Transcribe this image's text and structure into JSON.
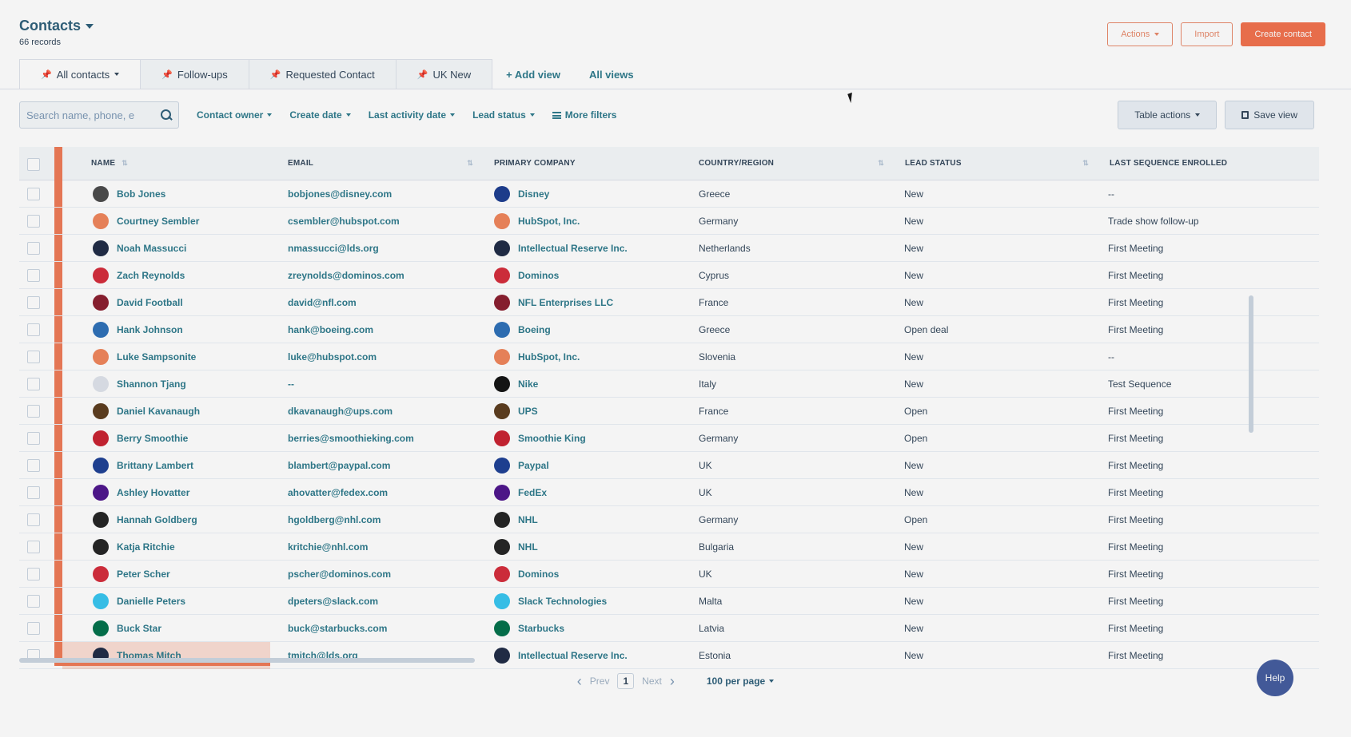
{
  "header": {
    "title": "Contacts",
    "records": "66 records",
    "actions_label": "Actions",
    "import_label": "Import",
    "create_label": "Create contact"
  },
  "tabs": [
    {
      "label": "All contacts",
      "active": true
    },
    {
      "label": "Follow-ups"
    },
    {
      "label": "Requested Contact"
    },
    {
      "label": "UK New"
    }
  ],
  "tab_links": {
    "add_view": "+ Add view",
    "all_views": "All views"
  },
  "filters": {
    "search_placeholder": "Search name, phone, e",
    "contact_owner": "Contact owner",
    "create_date": "Create date",
    "last_activity_date": "Last activity date",
    "lead_status": "Lead status",
    "more_filters": "More filters",
    "table_actions": "Table actions",
    "save_view": "Save view"
  },
  "table": {
    "columns": [
      "NAME",
      "EMAIL",
      "PRIMARY COMPANY",
      "COUNTRY/REGION",
      "LEAD STATUS",
      "LAST SEQUENCE ENROLLED"
    ],
    "rows": [
      {
        "name": "Bob Jones",
        "email": "bobjones@disney.com",
        "company": "Disney",
        "country": "Greece",
        "status": "New",
        "sequence": "--",
        "avatar_color": "#4a4a4a",
        "logo_color": "#1b3c8f",
        "logo_icon": "disney-logo-icon"
      },
      {
        "name": "Courtney Sembler",
        "email": "csembler@hubspot.com",
        "company": "HubSpot, Inc.",
        "country": "Germany",
        "status": "New",
        "sequence": "Trade show follow-up",
        "avatar_color": "#f0845a",
        "logo_color": "#f0845a",
        "logo_icon": "hubspot-logo-icon"
      },
      {
        "name": "Noah Massucci",
        "email": "nmassucci@lds.org",
        "company": "Intellectual Reserve Inc.",
        "country": "Netherlands",
        "status": "New",
        "sequence": "First Meeting",
        "avatar_color": "#1e2a44",
        "logo_color": "#1e2a44",
        "logo_icon": "lds-logo-icon"
      },
      {
        "name": "Zach Reynolds",
        "email": "zreynolds@dominos.com",
        "company": "Dominos",
        "country": "Cyprus",
        "status": "New",
        "sequence": "First Meeting",
        "avatar_color": "#d42b3a",
        "logo_color": "#d42b3a",
        "logo_icon": "dominos-logo-icon"
      },
      {
        "name": "David Football",
        "email": "david@nfl.com",
        "company": "NFL Enterprises LLC",
        "country": "France",
        "status": "New",
        "sequence": "First Meeting",
        "avatar_color": "#8a1c2d",
        "logo_color": "#8a1c2d",
        "logo_icon": "nfl-logo-icon"
      },
      {
        "name": "Hank Johnson",
        "email": "hank@boeing.com",
        "company": "Boeing",
        "country": "Greece",
        "status": "Open deal",
        "sequence": "First Meeting",
        "avatar_color": "#2c6fb7",
        "logo_color": "#2c6fb7",
        "logo_icon": "boeing-logo-icon"
      },
      {
        "name": "Luke Sampsonite",
        "email": "luke@hubspot.com",
        "company": "HubSpot, Inc.",
        "country": "Slovenia",
        "status": "New",
        "sequence": "--",
        "avatar_color": "#f0845a",
        "logo_color": "#f0845a",
        "logo_icon": "hubspot-logo-icon"
      },
      {
        "name": "Shannon Tjang",
        "email": "--",
        "company": "Nike",
        "country": "Italy",
        "status": "New",
        "sequence": "Test Sequence",
        "avatar_color": "#dfe3eb",
        "logo_color": "#111111",
        "logo_icon": "nike-logo-icon"
      },
      {
        "name": "Daniel Kavanaugh",
        "email": "dkavanaugh@ups.com",
        "company": "UPS",
        "country": "France",
        "status": "Open",
        "sequence": "First Meeting",
        "avatar_color": "#5b3b1c",
        "logo_color": "#5b3b1c",
        "logo_icon": "ups-logo-icon"
      },
      {
        "name": "Berry Smoothie",
        "email": "berries@smoothieking.com",
        "company": "Smoothie King",
        "country": "Germany",
        "status": "Open",
        "sequence": "First Meeting",
        "avatar_color": "#c8202f",
        "logo_color": "#c8202f",
        "logo_icon": "smoothie-king-logo-icon"
      },
      {
        "name": "Brittany Lambert",
        "email": "blambert@paypal.com",
        "company": "Paypal",
        "country": "UK",
        "status": "New",
        "sequence": "First Meeting",
        "avatar_color": "#1c3f94",
        "logo_color": "#1c3f94",
        "logo_icon": "paypal-logo-icon"
      },
      {
        "name": "Ashley Hovatter",
        "email": "ahovatter@fedex.com",
        "company": "FedEx",
        "country": "UK",
        "status": "New",
        "sequence": "First Meeting",
        "avatar_color": "#4d148c",
        "logo_color": "#4d148c",
        "logo_icon": "fedex-logo-icon"
      },
      {
        "name": "Hannah Goldberg",
        "email": "hgoldberg@nhl.com",
        "company": "NHL",
        "country": "Germany",
        "status": "Open",
        "sequence": "First Meeting",
        "avatar_color": "#222222",
        "logo_color": "#222222",
        "logo_icon": "nhl-logo-icon"
      },
      {
        "name": "Katja Ritchie",
        "email": "kritchie@nhl.com",
        "company": "NHL",
        "country": "Bulgaria",
        "status": "New",
        "sequence": "First Meeting",
        "avatar_color": "#222222",
        "logo_color": "#222222",
        "logo_icon": "nhl-logo-icon"
      },
      {
        "name": "Peter Scher",
        "email": "pscher@dominos.com",
        "company": "Dominos",
        "country": "UK",
        "status": "New",
        "sequence": "First Meeting",
        "avatar_color": "#d42b3a",
        "logo_color": "#d42b3a",
        "logo_icon": "dominos-logo-icon"
      },
      {
        "name": "Danielle Peters",
        "email": "dpeters@slack.com",
        "company": "Slack Technologies",
        "country": "Malta",
        "status": "New",
        "sequence": "First Meeting",
        "avatar_color": "#36c5f0",
        "logo_color": "#36c5f0",
        "logo_icon": "slack-logo-icon"
      },
      {
        "name": "Buck Star",
        "email": "buck@starbucks.com",
        "company": "Starbucks",
        "country": "Latvia",
        "status": "New",
        "sequence": "First Meeting",
        "avatar_color": "#00704a",
        "logo_color": "#00704a",
        "logo_icon": "starbucks-logo-icon"
      },
      {
        "name": "Thomas Mitch",
        "email": "tmitch@lds.org",
        "company": "Intellectual Reserve Inc.",
        "country": "Estonia",
        "status": "New",
        "sequence": "First Meeting",
        "avatar_color": "#1e2a44",
        "logo_color": "#1e2a44",
        "logo_icon": "lds-logo-icon"
      }
    ]
  },
  "pagination": {
    "prev": "Prev",
    "page": "1",
    "next": "Next",
    "per_page": "100 per page"
  },
  "help_label": "Help",
  "colors": {
    "accent": "#f2704c",
    "link": "#2d7a8c",
    "text": "#33475b"
  }
}
